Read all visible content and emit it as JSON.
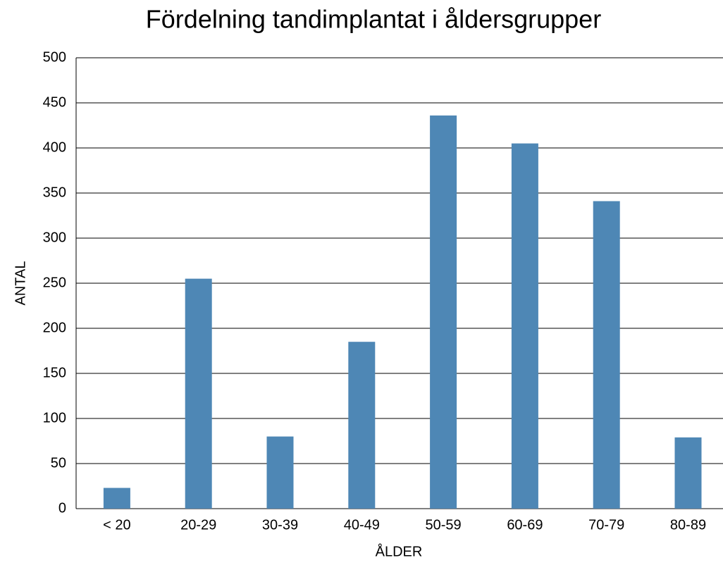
{
  "chart_data": {
    "type": "bar",
    "title": "Fördelning tandimplantat i åldersgrupper",
    "x_label": "ÅLDER",
    "y_label": "ANTAL",
    "categories": [
      "< 20",
      "20-29",
      "30-39",
      "40-49",
      "50-59",
      "60-69",
      "70-79",
      "80-89"
    ],
    "values": [
      23,
      255,
      80,
      185,
      436,
      405,
      341,
      79
    ],
    "color": "#4e87b5",
    "ylim": [
      0,
      500
    ],
    "yticks": [
      0,
      50,
      100,
      150,
      200,
      250,
      300,
      350,
      400,
      450,
      500
    ],
    "grid": true
  }
}
